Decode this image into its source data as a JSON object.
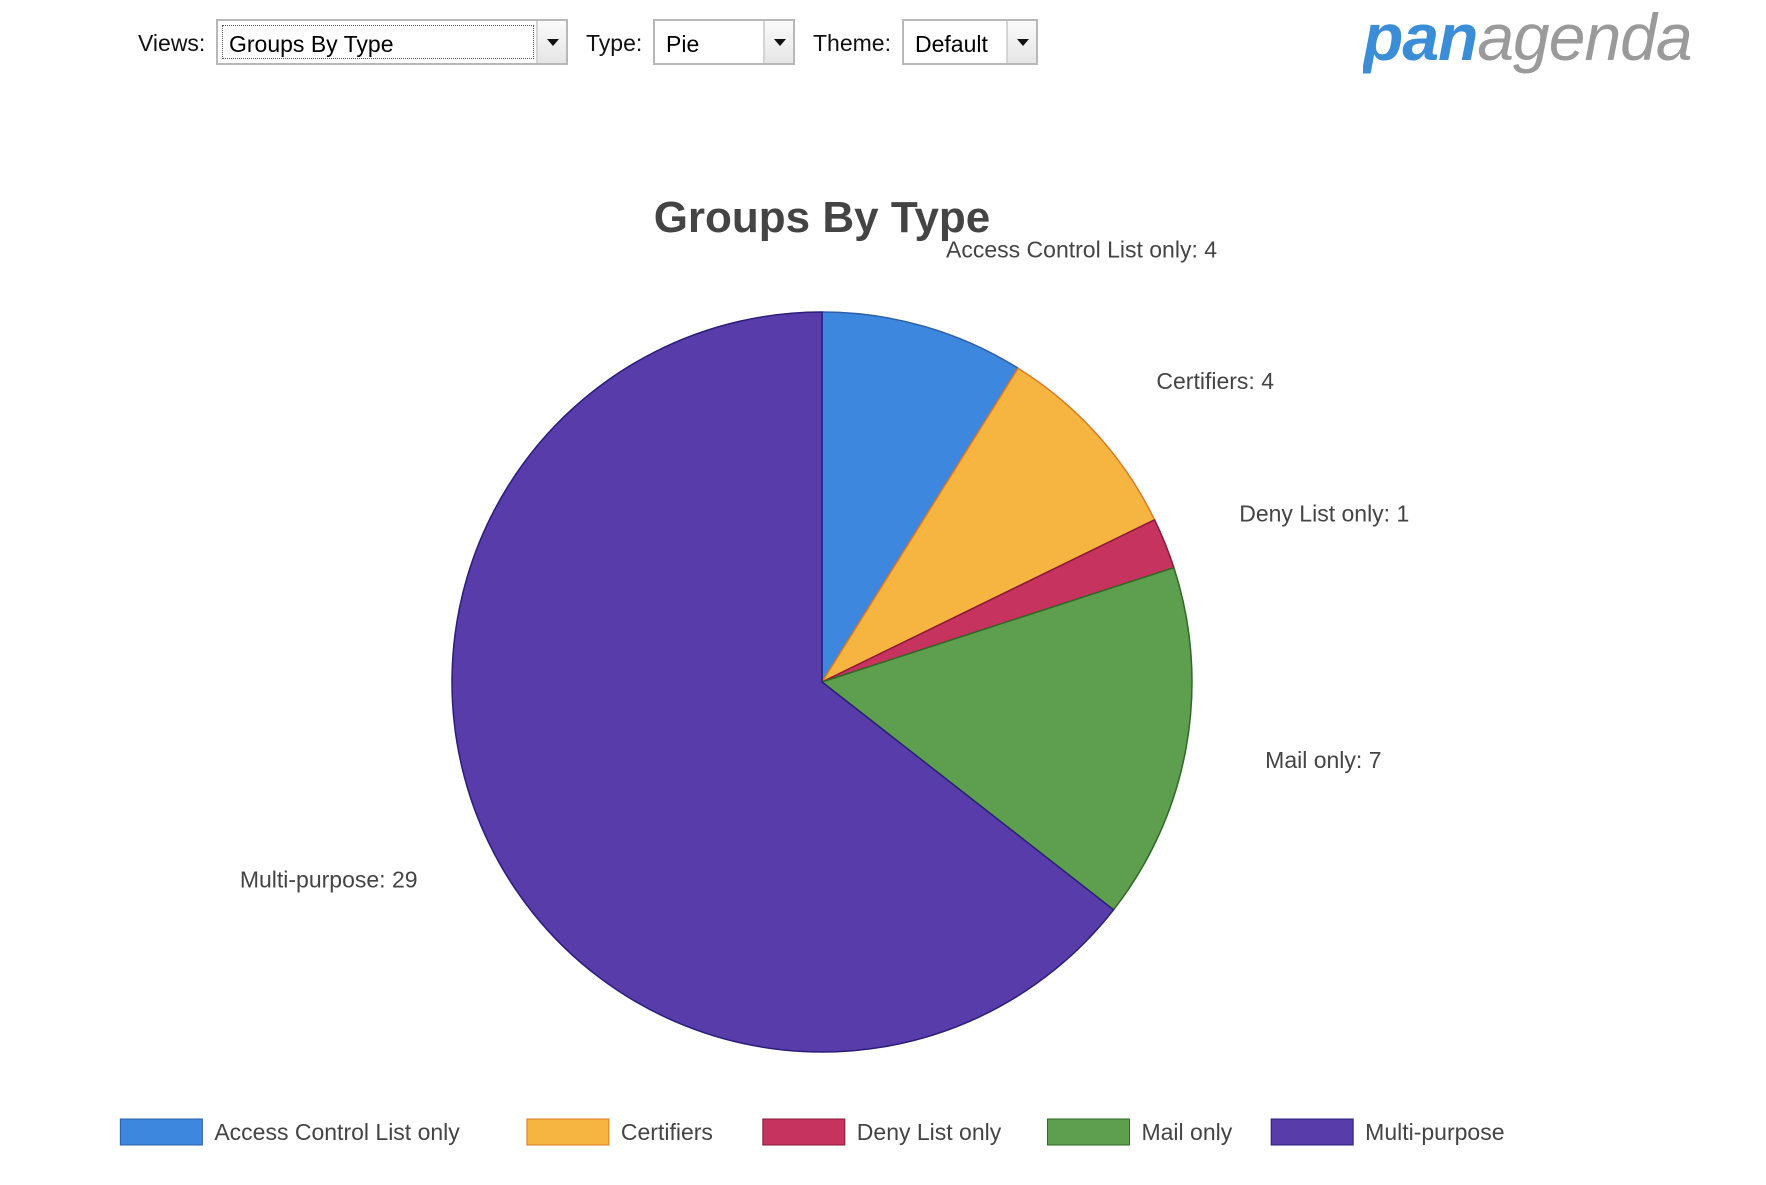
{
  "toolbar": {
    "views_label": "Views:",
    "views_value": "Groups By Type",
    "type_label": "Type:",
    "type_value": "Pie",
    "theme_label": "Theme:",
    "theme_value": "Default"
  },
  "logo": {
    "part1": "pan",
    "part2": "agenda",
    "color1": "#3a8dd6",
    "color2": "#9a9a9a"
  },
  "chart_data": {
    "type": "pie",
    "title": "Groups By Type",
    "legend_position": "bottom",
    "start": "12 o'clock, clockwise",
    "slices": [
      {
        "label": "Access Control List only",
        "value": 4,
        "data_label": "Access Control List only: 4",
        "color": "#3d87df",
        "stroke": "#2b5fa8"
      },
      {
        "label": "Certifiers",
        "value": 4,
        "data_label": "Certifiers: 4",
        "color": "#f6b441",
        "stroke": "#e07a1f"
      },
      {
        "label": "Deny List only",
        "value": 1,
        "data_label": "Deny List only: 1",
        "color": "#c5335e",
        "stroke": "#8a1a3a"
      },
      {
        "label": "Mail only",
        "value": 7,
        "data_label": "Mail only: 7",
        "color": "#5e9f4f",
        "stroke": "#2f6a25"
      },
      {
        "label": "Multi-purpose",
        "value": 29,
        "data_label": "Multi-purpose: 29",
        "color": "#573caa",
        "stroke": "#2b1e7a"
      }
    ]
  }
}
